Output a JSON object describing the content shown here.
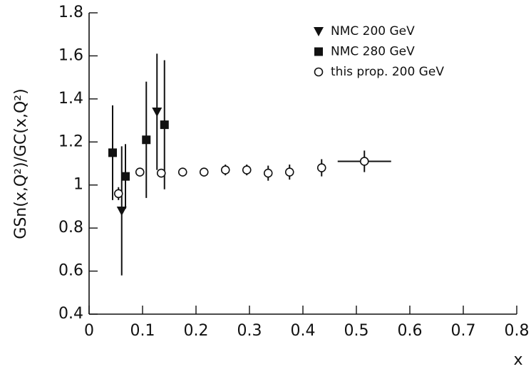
{
  "chart_data": {
    "type": "scatter",
    "y_label": "GSn(x,Q²)/GC(x,Q²)",
    "x_label": "x",
    "xlim": [
      0,
      0.8
    ],
    "ylim": [
      0.4,
      1.8
    ],
    "xticks": [
      0,
      0.1,
      0.2,
      0.3,
      0.4,
      0.5,
      0.6,
      0.7,
      0.8
    ],
    "yticks": [
      0.4,
      0.6,
      0.8,
      1,
      1.2,
      1.4,
      1.6,
      1.8
    ],
    "legend": "top-right",
    "series": [
      {
        "name": "NMC  200 GeV",
        "marker": "triangle-down",
        "color": "#111111",
        "x": [
          0.061,
          0.127
        ],
        "values": [
          0.88,
          1.34
        ],
        "errors": [
          0.3,
          0.27
        ]
      },
      {
        "name": "NMC  280 GeV",
        "marker": "square",
        "color": "#111111",
        "x": [
          0.044,
          0.068,
          0.107,
          0.141
        ],
        "values": [
          1.15,
          1.04,
          1.21,
          1.28
        ],
        "errors": [
          0.22,
          0.15,
          0.27,
          0.3
        ]
      },
      {
        "name": "this prop. 200 GeV",
        "marker": "open-circle",
        "color": "#111111",
        "x": [
          0.055,
          0.095,
          0.135,
          0.175,
          0.215,
          0.255,
          0.295,
          0.335,
          0.375,
          0.435,
          0.515
        ],
        "values": [
          0.96,
          1.06,
          1.055,
          1.06,
          1.06,
          1.07,
          1.07,
          1.055,
          1.06,
          1.08,
          1.11
        ],
        "errors": [
          0.03,
          0.02,
          0.02,
          0.02,
          0.02,
          0.025,
          0.025,
          0.035,
          0.035,
          0.04,
          0.05
        ],
        "x_errors": [
          0,
          0,
          0,
          0,
          0,
          0,
          0,
          0,
          0,
          0,
          0.05
        ]
      }
    ]
  }
}
